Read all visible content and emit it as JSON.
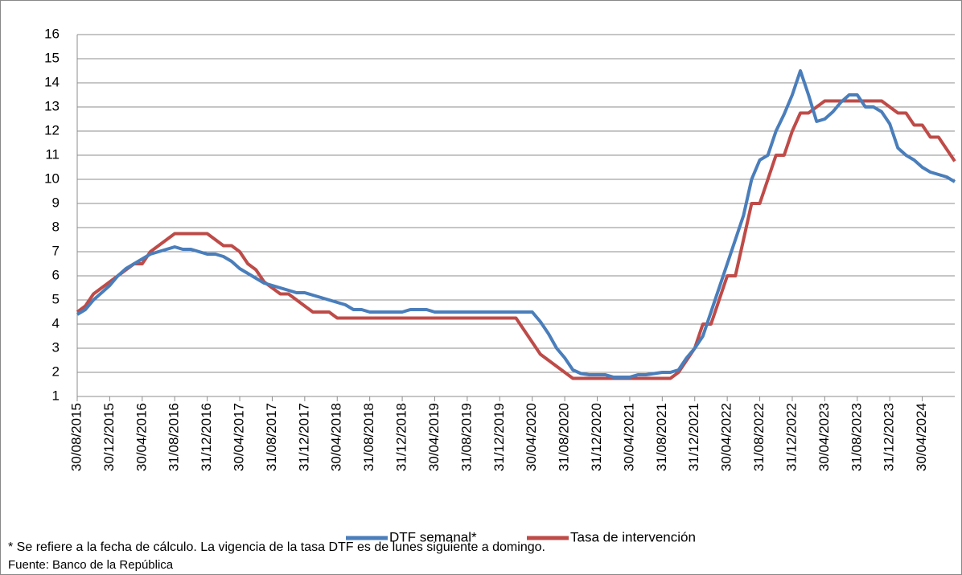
{
  "chart_data": {
    "type": "line",
    "categories": [
      "30/08/2015",
      null,
      null,
      null,
      "30/12/2015",
      null,
      null,
      null,
      "30/04/2016",
      null,
      null,
      null,
      "31/08/2016",
      null,
      null,
      null,
      "31/12/2016",
      null,
      null,
      null,
      "30/04/2017",
      null,
      null,
      null,
      "31/08/2017",
      null,
      null,
      null,
      "31/12/2017",
      null,
      null,
      null,
      "30/04/2018",
      null,
      null,
      null,
      "31/08/2018",
      null,
      null,
      null,
      "31/12/2018",
      null,
      null,
      null,
      "30/04/2019",
      null,
      null,
      null,
      "31/08/2019",
      null,
      null,
      null,
      "31/12/2019",
      null,
      null,
      null,
      "30/04/2020",
      null,
      null,
      null,
      "31/08/2020",
      null,
      null,
      null,
      "31/12/2020",
      null,
      null,
      null,
      "30/04/2021",
      null,
      null,
      null,
      "31/08/2021",
      null,
      null,
      null,
      "31/12/2021",
      null,
      null,
      null,
      "30/04/2022",
      null,
      null,
      null,
      "31/08/2022",
      null,
      null,
      null,
      "31/12/2022",
      null,
      null,
      null,
      "30/04/2023",
      null,
      null,
      null,
      "31/08/2023",
      null,
      null,
      null,
      "31/12/2023",
      null,
      null,
      null,
      "30/04/2024",
      null,
      null,
      null,
      null
    ],
    "series": [
      {
        "name": "DTF semanal*",
        "color": "#4a7ebb",
        "values": [
          4.4,
          4.6,
          5,
          5.3,
          5.6,
          6,
          6.3,
          6.5,
          6.7,
          6.9,
          7,
          7.1,
          7.2,
          7.1,
          7.1,
          7,
          6.9,
          6.9,
          6.8,
          6.6,
          6.3,
          6.1,
          5.9,
          5.7,
          5.6,
          5.5,
          5.4,
          5.3,
          5.3,
          5.2,
          5.1,
          5,
          4.9,
          4.8,
          4.6,
          4.6,
          4.5,
          4.5,
          4.5,
          4.5,
          4.5,
          4.6,
          4.6,
          4.6,
          4.5,
          4.5,
          4.5,
          4.5,
          4.5,
          4.5,
          4.5,
          4.5,
          4.5,
          4.5,
          4.5,
          4.5,
          4.5,
          4.1,
          3.6,
          3,
          2.6,
          2.1,
          1.95,
          1.9,
          1.9,
          1.9,
          1.8,
          1.8,
          1.8,
          1.9,
          1.9,
          1.95,
          2,
          2,
          2.1,
          2.6,
          3,
          3.5,
          4.5,
          5.5,
          6.5,
          7.5,
          8.5,
          10,
          10.8,
          11,
          12,
          12.7,
          13.5,
          14.5,
          13.5,
          12.4,
          12.5,
          12.8,
          13.2,
          13.5,
          13.5,
          13,
          13,
          12.8,
          12.3,
          11.3,
          11,
          10.8,
          10.5,
          10.3,
          10.2,
          10.1,
          9.9
        ]
      },
      {
        "name": "Tasa de intervención",
        "color": "#be4b48",
        "values": [
          4.5,
          4.75,
          5.25,
          5.5,
          5.75,
          6,
          6.25,
          6.5,
          6.5,
          7,
          7.25,
          7.5,
          7.75,
          7.75,
          7.75,
          7.75,
          7.75,
          7.5,
          7.25,
          7.25,
          7,
          6.5,
          6.25,
          5.75,
          5.5,
          5.25,
          5.25,
          5,
          4.75,
          4.5,
          4.5,
          4.5,
          4.25,
          4.25,
          4.25,
          4.25,
          4.25,
          4.25,
          4.25,
          4.25,
          4.25,
          4.25,
          4.25,
          4.25,
          4.25,
          4.25,
          4.25,
          4.25,
          4.25,
          4.25,
          4.25,
          4.25,
          4.25,
          4.25,
          4.25,
          3.75,
          3.25,
          2.75,
          2.5,
          2.25,
          2,
          1.75,
          1.75,
          1.75,
          1.75,
          1.75,
          1.75,
          1.75,
          1.75,
          1.75,
          1.75,
          1.75,
          1.75,
          1.75,
          2,
          2.5,
          3,
          4,
          4,
          5,
          6,
          6,
          7.5,
          9,
          9,
          10,
          11,
          11,
          12,
          12.75,
          12.75,
          13,
          13.25,
          13.25,
          13.25,
          13.25,
          13.25,
          13.25,
          13.25,
          13.25,
          13,
          12.75,
          12.75,
          12.25,
          12.25,
          11.75,
          11.75,
          11.25,
          10.75
        ]
      }
    ],
    "ylim": [
      1,
      16
    ],
    "yticks": [
      1,
      2,
      3,
      4,
      5,
      6,
      7,
      8,
      9,
      10,
      11,
      12,
      13,
      14,
      15,
      16
    ],
    "grid": true,
    "legend": "bottom",
    "annotations": [
      "* Se refiere a la fecha de cálculo. La vigencia de la tasa DTF es de lunes siguiente a domingo.",
      "Fuente: Banco de la República"
    ]
  }
}
